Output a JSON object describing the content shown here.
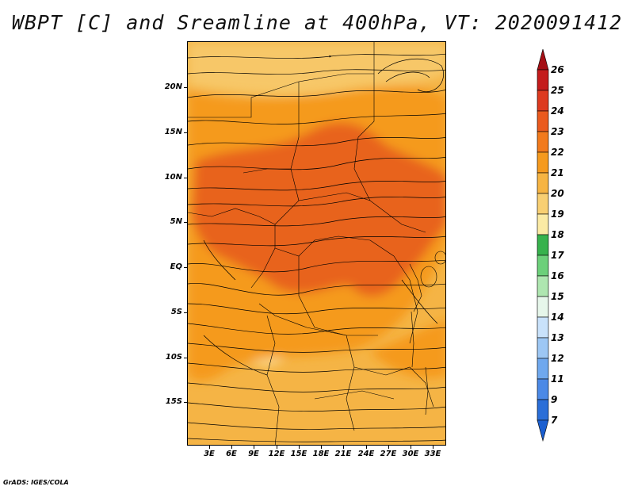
{
  "title": "WBPT [C] and Sreamline at 400hPa, VT: 2020091412",
  "map": {
    "lat_labels": [
      "20N",
      "15N",
      "10N",
      "5N",
      "EQ",
      "5S",
      "10S",
      "15S"
    ],
    "lon_labels": [
      "3E",
      "6E",
      "9E",
      "12E",
      "15E",
      "18E",
      "21E",
      "24E",
      "27E",
      "30E",
      "33E"
    ],
    "colors": {
      "background": "#f5b445",
      "warm": "#f59a1e",
      "hot": "#e8631c",
      "pale": "#f7c767",
      "lightest": "#fad98c"
    }
  },
  "colorbar": {
    "labels": [
      "26",
      "25",
      "24",
      "23",
      "22",
      "21",
      "20",
      "19",
      "18",
      "17",
      "16",
      "15",
      "14",
      "13",
      "12",
      "11",
      "9",
      "7"
    ],
    "colors": [
      "#a50f15",
      "#c41c1c",
      "#dd3a1f",
      "#ea5a1e",
      "#f27a1c",
      "#f59a1e",
      "#f6b442",
      "#f8cf72",
      "#fbeaa4",
      "#37b24d",
      "#6cd07a",
      "#aee6b0",
      "#e6f6ea",
      "#c9e2fb",
      "#9dc7f4",
      "#6fa8ee",
      "#4b89e6",
      "#2a6ed8",
      "#1b5fd0"
    ]
  },
  "credit": "GrADS: IGES/COLA"
}
